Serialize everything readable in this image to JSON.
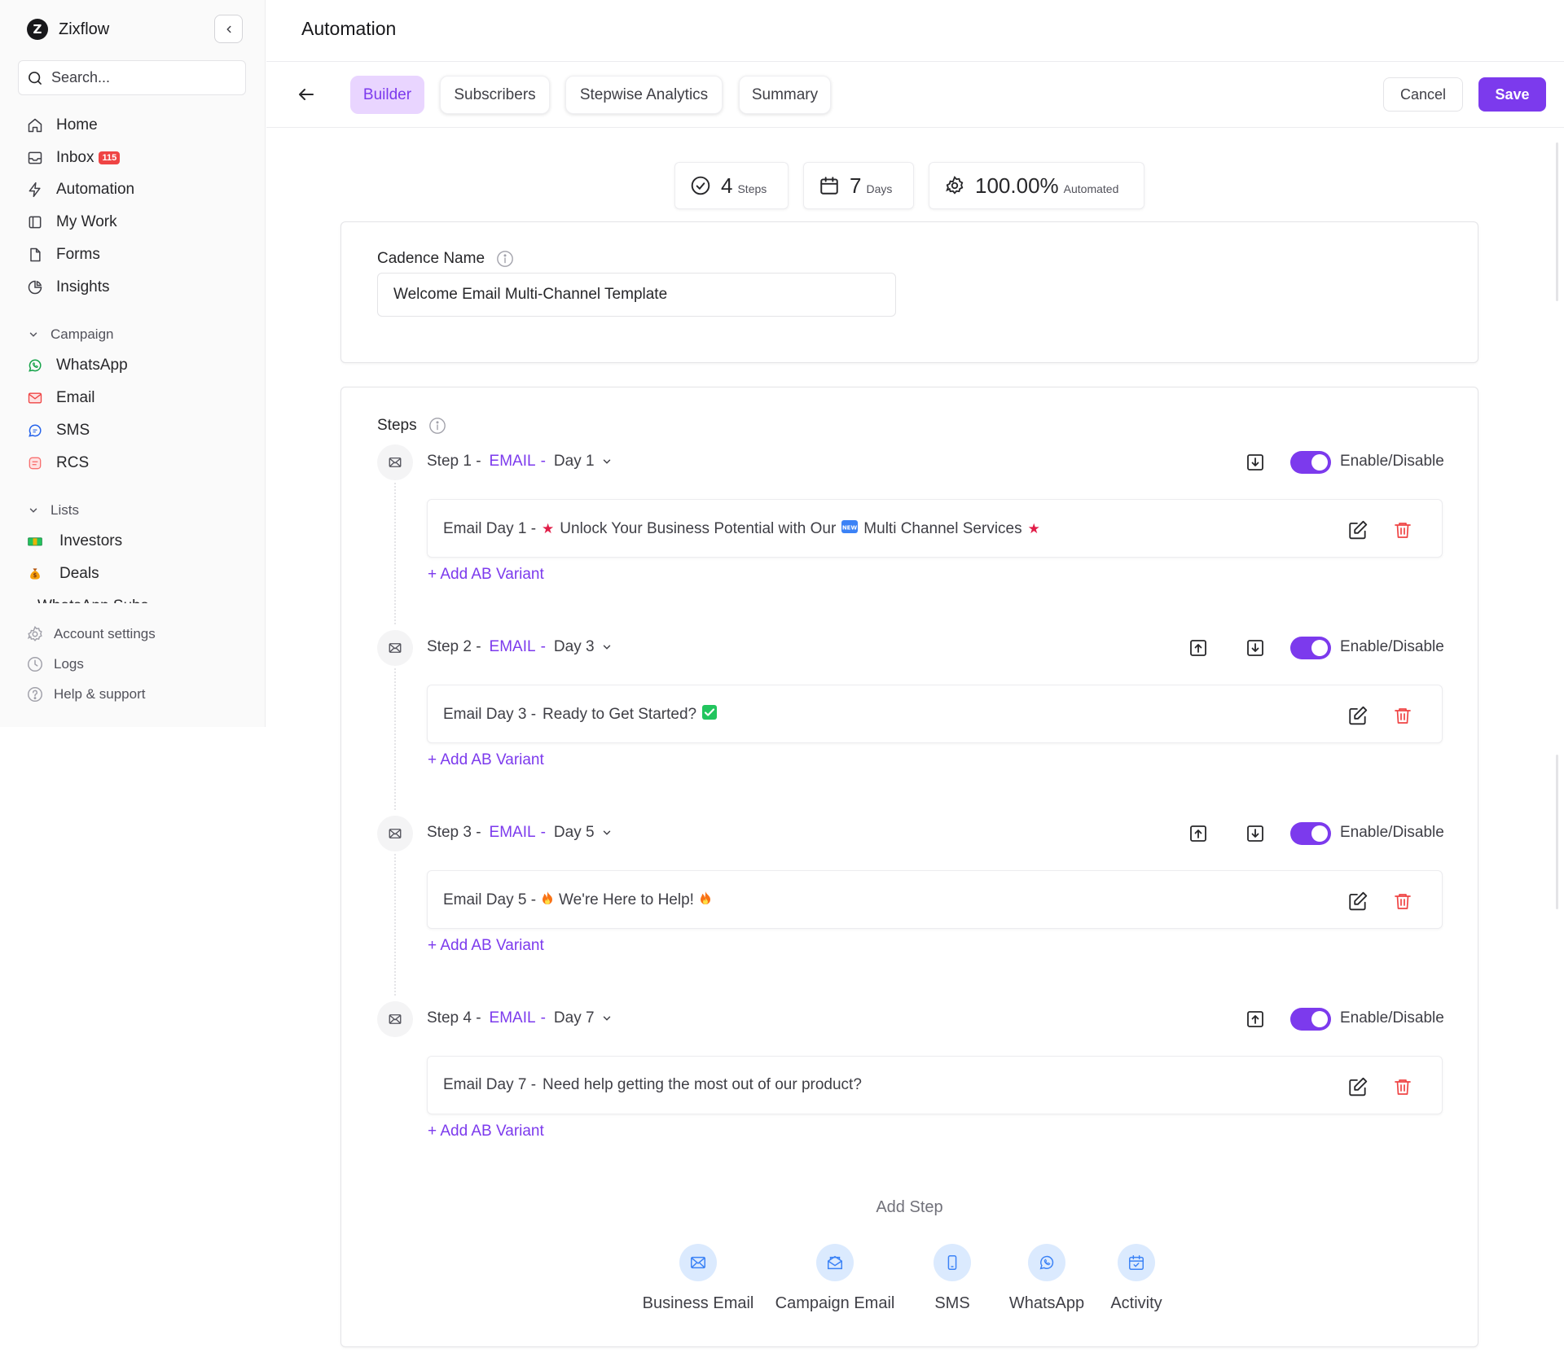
{
  "brand": {
    "name": "Zixflow"
  },
  "search": {
    "placeholder": "Search..."
  },
  "nav": {
    "home": "Home",
    "inbox": "Inbox",
    "inbox_badge": "115",
    "automation": "Automation",
    "my_work": "My Work",
    "forms": "Forms",
    "insights": "Insights"
  },
  "campaign": {
    "label": "Campaign",
    "items": [
      "WhatsApp",
      "Email",
      "SMS",
      "RCS"
    ]
  },
  "lists": {
    "label": "Lists",
    "items": [
      "Investors",
      "Deals"
    ],
    "truncated_item": "WhatsApp Subs"
  },
  "footer": {
    "account_settings": "Account settings",
    "logs": "Logs",
    "help": "Help & support"
  },
  "page": {
    "title": "Automation"
  },
  "tabs": [
    "Builder",
    "Subscribers",
    "Stepwise Analytics",
    "Summary"
  ],
  "actions": {
    "cancel": "Cancel",
    "save": "Save"
  },
  "stats": {
    "steps_value": "4",
    "steps_unit": "Steps",
    "days_value": "7",
    "days_unit": "Days",
    "automated_value": "100.00%",
    "automated_unit": "Automated"
  },
  "cadence": {
    "label": "Cadence Name",
    "value": "Welcome Email Multi-Channel Template"
  },
  "steps_label": "Steps",
  "toggle_label": "Enable/Disable",
  "ab_variant_label": "+ Add AB Variant",
  "steps": [
    {
      "title": "Step 1 -",
      "channel": "EMAIL",
      "day": "Day 1",
      "email_prefix": "Email Day 1 -",
      "subject": [
        "Unlock Your Business Potential with Our",
        "Multi Channel Services"
      ]
    },
    {
      "title": "Step 2 -",
      "channel": "EMAIL",
      "day": "Day 3",
      "email_prefix": "Email Day 3 -",
      "subject": [
        "Ready to Get Started?"
      ]
    },
    {
      "title": "Step 3 -",
      "channel": "EMAIL",
      "day": "Day 5",
      "email_prefix": "Email Day 5 -",
      "subject": [
        "We're Here to Help!"
      ]
    },
    {
      "title": "Step 4 -",
      "channel": "EMAIL",
      "day": "Day 7",
      "email_prefix": "Email Day 7 -",
      "subject": [
        "Need help getting the most out of our product?"
      ]
    }
  ],
  "add_step": {
    "title": "Add Step",
    "options": [
      "Business Email",
      "Campaign Email",
      "SMS",
      "WhatsApp",
      "Activity"
    ]
  },
  "colors": {
    "accent": "#7c3aed",
    "accent_light": "#e9d5ff",
    "danger": "#ef4444",
    "channel_bg": "#dbeafe"
  }
}
